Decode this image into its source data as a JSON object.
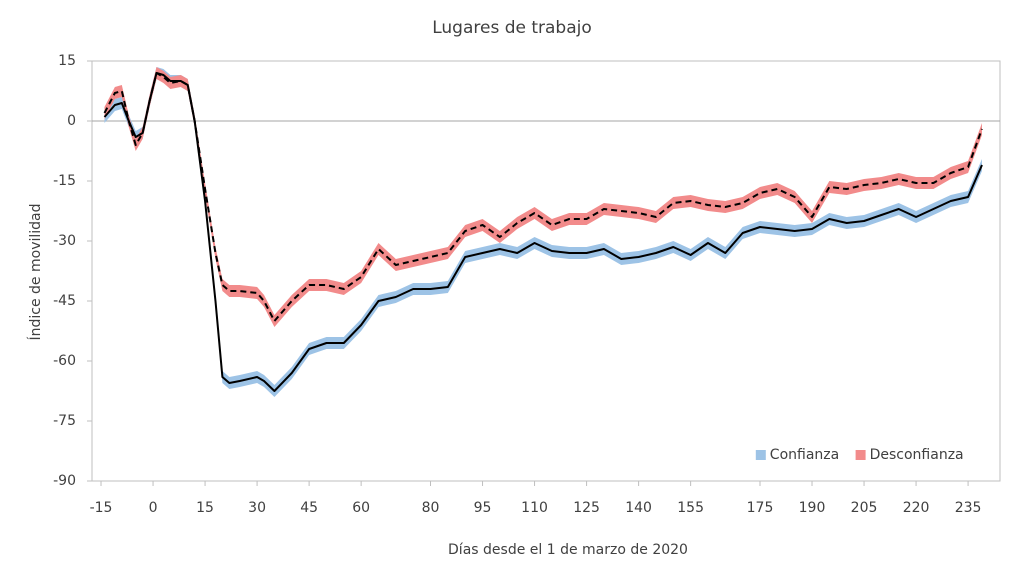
{
  "chart_data": {
    "type": "line-band",
    "title": "Lugares de trabajo",
    "x_label": "Días desde el 1 de marzo de 2020",
    "y_label": "Índice de movilidad",
    "x": [
      -14,
      -11,
      -9,
      -7,
      -5,
      -3,
      -1,
      1,
      3,
      5,
      8,
      10,
      12,
      15,
      18,
      20,
      22,
      25,
      30,
      32,
      35,
      40,
      45,
      50,
      55,
      60,
      65,
      70,
      75,
      80,
      85,
      90,
      95,
      100,
      105,
      110,
      115,
      120,
      125,
      130,
      135,
      140,
      145,
      150,
      155,
      160,
      165,
      170,
      175,
      180,
      185,
      190,
      195,
      200,
      205,
      210,
      215,
      220,
      225,
      230,
      235,
      239
    ],
    "series": [
      {
        "name": "Confianza",
        "color": "#9dc3e6",
        "line_color": "#000000",
        "line_style": "solid",
        "values": [
          1,
          4,
          4.5,
          0,
          -4,
          -3,
          5,
          12,
          11.5,
          10,
          10,
          9,
          0,
          -20,
          -45,
          -64,
          -65.5,
          -65,
          -64,
          -65,
          -67.5,
          -63,
          -57,
          -55.5,
          -55.5,
          -51,
          -45,
          -44,
          -42,
          -42,
          -41.5,
          -34,
          -33,
          -32,
          -33,
          -30.5,
          -32.5,
          -33,
          -33,
          -32,
          -34.5,
          -34,
          -33,
          -31.5,
          -33.5,
          -30.5,
          -33,
          -28,
          -26.5,
          -27,
          -27.5,
          -27,
          -24.5,
          -25.5,
          -25,
          -23.5,
          -22,
          -24,
          -22,
          -20,
          -19,
          -11
        ],
        "lower": [
          -0.5,
          2.5,
          3,
          -1.5,
          -5.5,
          -4.5,
          3.5,
          10.5,
          10,
          8.5,
          8.5,
          7.5,
          -1.5,
          -21.5,
          -46.5,
          -65.5,
          -67,
          -66.5,
          -65.5,
          -66.5,
          -69,
          -64.5,
          -58.5,
          -57,
          -57,
          -52.5,
          -46.5,
          -45.5,
          -43.5,
          -43.5,
          -43,
          -35.5,
          -34.5,
          -33.5,
          -34.5,
          -32,
          -34,
          -34.5,
          -34.5,
          -33.5,
          -36,
          -35.5,
          -34.5,
          -33,
          -35,
          -32,
          -34.5,
          -29.5,
          -28,
          -28.5,
          -29,
          -28.5,
          -26,
          -27,
          -26.5,
          -25,
          -23.5,
          -25.5,
          -23.5,
          -21.5,
          -20.5,
          -12.5
        ],
        "upper": [
          2.5,
          5.5,
          6,
          1.5,
          -2.5,
          -1.5,
          6.5,
          13.5,
          13,
          11.5,
          11.5,
          10.5,
          1.5,
          -18.5,
          -43.5,
          -62.5,
          -64,
          -63.5,
          -62.5,
          -63.5,
          -66,
          -61.5,
          -55.5,
          -54,
          -54,
          -49.5,
          -43.5,
          -42.5,
          -40.5,
          -40.5,
          -40,
          -32.5,
          -31.5,
          -30.5,
          -31.5,
          -29,
          -31,
          -31.5,
          -31.5,
          -30.5,
          -33,
          -32.5,
          -31.5,
          -30,
          -32,
          -29,
          -31.5,
          -26.5,
          -25,
          -25.5,
          -26,
          -25.5,
          -23,
          -24,
          -23.5,
          -22,
          -20.5,
          -22.5,
          -20.5,
          -18.5,
          -17.5,
          -9.5
        ]
      },
      {
        "name": "Desconfianza",
        "color": "#f28b8b",
        "line_color": "#000000",
        "line_style": "dashed",
        "values": [
          2,
          7,
          7.5,
          0,
          -6,
          -3,
          5,
          12,
          11,
          9.5,
          10,
          9,
          0,
          -17,
          -33,
          -41,
          -42.5,
          -42.5,
          -43,
          -45,
          -50,
          -45,
          -41,
          -41,
          -42,
          -39,
          -32,
          -36,
          -35,
          -34,
          -33,
          -27.5,
          -26,
          -29,
          -25.5,
          -23,
          -26,
          -24.5,
          -24.5,
          -22,
          -22.5,
          -23,
          -24,
          -20.5,
          -20,
          -21,
          -21.5,
          -20.5,
          -18,
          -17,
          -19,
          -24,
          -16.5,
          -17,
          -16,
          -15.5,
          -14.5,
          -15.5,
          -15.5,
          -13,
          -11.5,
          -2
        ],
        "lower": [
          0.5,
          5.5,
          6,
          -1.5,
          -7.5,
          -4.5,
          3.5,
          10.5,
          9.5,
          8,
          8.5,
          7.5,
          -1.5,
          -18.5,
          -34.5,
          -42.5,
          -44,
          -44,
          -44.5,
          -46.5,
          -51.5,
          -46.5,
          -42.5,
          -42.5,
          -43.5,
          -40.5,
          -33.5,
          -37.5,
          -36.5,
          -35.5,
          -34.5,
          -29,
          -27.5,
          -30.5,
          -27,
          -24.5,
          -27.5,
          -26,
          -26,
          -23.5,
          -24,
          -24.5,
          -25.5,
          -22,
          -21.5,
          -22.5,
          -23,
          -22,
          -19.5,
          -18.5,
          -20.5,
          -25.5,
          -18,
          -18.5,
          -17.5,
          -17,
          -16,
          -17,
          -17,
          -14.5,
          -13,
          -3.5
        ],
        "upper": [
          3.5,
          8.5,
          9,
          1.5,
          -4.5,
          -1.5,
          6.5,
          13.5,
          12.5,
          11,
          11.5,
          10.5,
          1.5,
          -15.5,
          -31.5,
          -39.5,
          -41,
          -41,
          -41.5,
          -43.5,
          -48.5,
          -43.5,
          -39.5,
          -39.5,
          -40.5,
          -37.5,
          -30.5,
          -34.5,
          -33.5,
          -32.5,
          -31.5,
          -26,
          -24.5,
          -27.5,
          -24,
          -21.5,
          -24.5,
          -23,
          -23,
          -20.5,
          -21,
          -21.5,
          -22.5,
          -19,
          -18.5,
          -19.5,
          -20,
          -19,
          -16.5,
          -15.5,
          -17.5,
          -22.5,
          -15,
          -15.5,
          -14.5,
          -14,
          -13,
          -14,
          -14,
          -11.5,
          -10,
          -0.5
        ]
      }
    ],
    "xlim": [
      -17.6,
      244.2
    ],
    "xticks": [
      -15,
      0,
      15,
      30,
      45,
      60,
      80,
      95,
      110,
      125,
      140,
      155,
      175,
      190,
      205,
      220,
      235
    ],
    "ylim": [
      -90,
      15
    ],
    "yticks": [
      15,
      0,
      -15,
      -30,
      -45,
      -60,
      -75,
      -90
    ],
    "legend": "lower right"
  }
}
